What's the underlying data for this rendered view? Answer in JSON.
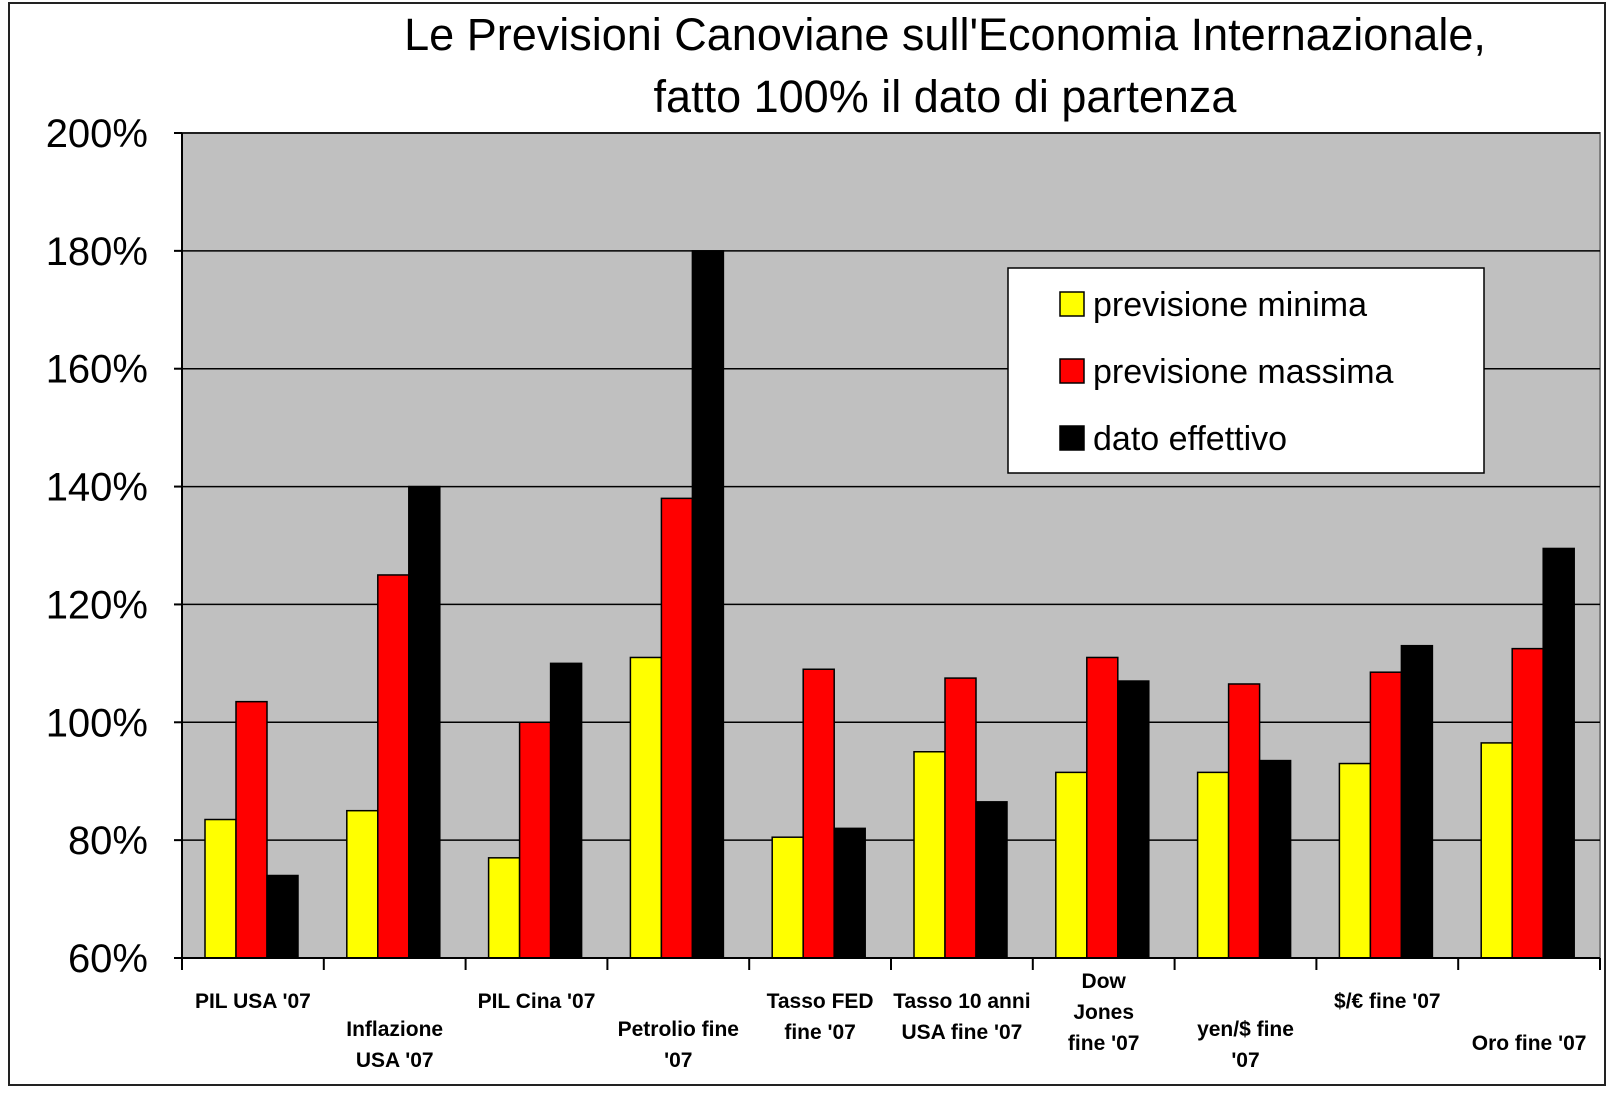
{
  "chart_data": {
    "type": "bar",
    "title": "Le Previsioni Canoviane sull'Economia Internazionale,",
    "subtitle": "fatto 100% il dato di partenza",
    "xlabel": "",
    "ylabel": "",
    "ylim": [
      60,
      200
    ],
    "yticks": [
      60,
      80,
      100,
      120,
      140,
      160,
      180,
      200
    ],
    "ytick_labels": [
      "60%",
      "80%",
      "100%",
      "120%",
      "140%",
      "160%",
      "180%",
      "200%"
    ],
    "grid": true,
    "legend_position": "top-right",
    "categories": [
      [
        "PIL USA '07"
      ],
      [
        "Inflazione",
        "USA '07"
      ],
      [
        "PIL Cina '07"
      ],
      [
        "Petrolio fine",
        "'07"
      ],
      [
        "Tasso FED",
        "fine '07"
      ],
      [
        "Tasso 10 anni",
        "USA fine '07"
      ],
      [
        "Dow",
        "Jones",
        "fine '07"
      ],
      [
        "yen/$  fine",
        "'07"
      ],
      [
        "$/€ fine '07"
      ],
      [
        "Oro fine '07"
      ]
    ],
    "series": [
      {
        "name": "previsione minima",
        "color": "#ffff00",
        "values": [
          83.5,
          85,
          77,
          111,
          80.5,
          95,
          91.5,
          91.5,
          93,
          96.5
        ]
      },
      {
        "name": "previsione massima",
        "color": "#ff0000",
        "values": [
          103.5,
          125,
          100,
          138,
          109,
          107.5,
          111,
          106.5,
          108.5,
          112.5
        ]
      },
      {
        "name": "dato effettivo",
        "color": "#000000",
        "values": [
          74,
          140,
          110,
          180,
          82,
          86.5,
          107,
          93.5,
          113,
          129.5
        ]
      }
    ]
  }
}
